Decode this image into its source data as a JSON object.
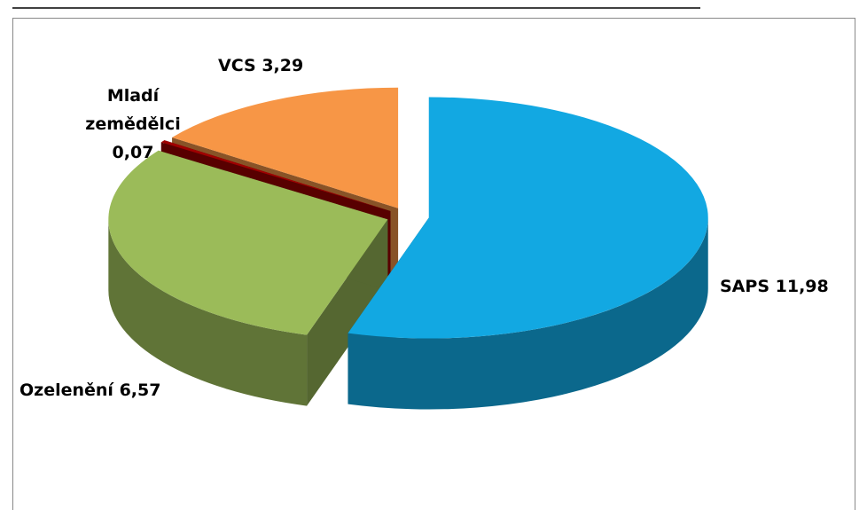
{
  "chart_data": {
    "type": "pie",
    "categories": [
      "SAPS",
      "Ozelenění",
      "Mladí zemědělci",
      "VCS"
    ],
    "values": [
      11.98,
      6.57,
      0.07,
      3.29
    ],
    "value_labels": [
      "11,98",
      "6,57",
      "0,07",
      "3,29"
    ],
    "colors": [
      "#12a8e2",
      "#9bbb59",
      "#a00000",
      "#f79646"
    ]
  }
}
